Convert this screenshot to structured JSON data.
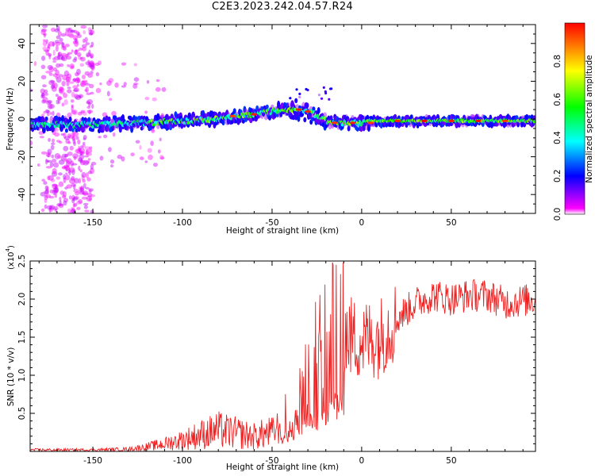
{
  "title": "C2E3.2023.242.04.57.R24",
  "colors": {
    "line": "#ee2222",
    "colormap": [
      "#ff00ff",
      "#0000ff",
      "#00ffff",
      "#00ff00",
      "#ffff00",
      "#ff0000"
    ]
  },
  "chart_data": [
    {
      "type": "heatmap",
      "xlabel": "Height of straight line (km)",
      "ylabel": "Frequency (Hz)",
      "xlim": [
        -185,
        97
      ],
      "ylim": [
        -50,
        50
      ],
      "xticks": [
        -150,
        -100,
        -50,
        0,
        50
      ],
      "yticks": [
        -40,
        -20,
        0,
        20,
        40
      ],
      "colorbar": {
        "label": "Normalized spectral amplitude",
        "range": [
          0.0,
          1.0
        ],
        "ticks": [
          "0.0",
          "0.2",
          "0.4",
          "0.6",
          "0.8"
        ]
      },
      "ridge": {
        "x": [
          -185,
          -150,
          -120,
          -100,
          -80,
          -70,
          -60,
          -50,
          -40,
          -35,
          -30,
          -25,
          -20,
          -15,
          -10,
          0,
          10,
          50,
          97
        ],
        "y": [
          -3,
          -3,
          -2,
          -1,
          0,
          1.5,
          2.5,
          4,
          5,
          5,
          4,
          2,
          -1,
          -2,
          -2,
          -2,
          -1,
          -1,
          -1
        ]
      }
    },
    {
      "type": "line",
      "xlabel": "Height of straight line (km)",
      "ylabel": "SNR (10 * v/v)",
      "yscale_note": "(x10",
      "yscale_exp": "4",
      "yscale_close": ")",
      "xlim": [
        -185,
        97
      ],
      "ylim": [
        0,
        2.5
      ],
      "xticks": [
        -150,
        -100,
        -50,
        0,
        50
      ],
      "yticks": [
        "0.5",
        "1.0",
        "1.5",
        "2.0",
        "2.5"
      ],
      "envelope": {
        "x": [
          -185,
          -150,
          -130,
          -120,
          -110,
          -100,
          -90,
          -80,
          -70,
          -60,
          -50,
          -45,
          -40,
          -35,
          -30,
          -25,
          -20,
          -15,
          -10,
          -5,
          0,
          10,
          20,
          30,
          40,
          50,
          60,
          70,
          80,
          97
        ],
        "y": [
          0.02,
          0.02,
          0.03,
          0.06,
          0.1,
          0.15,
          0.22,
          0.28,
          0.24,
          0.2,
          0.25,
          0.35,
          0.55,
          0.8,
          1.0,
          1.2,
          1.4,
          1.5,
          1.55,
          1.5,
          1.45,
          1.5,
          1.75,
          1.95,
          2.05,
          2.0,
          2.05,
          2.05,
          1.95,
          2.0
        ]
      }
    }
  ]
}
